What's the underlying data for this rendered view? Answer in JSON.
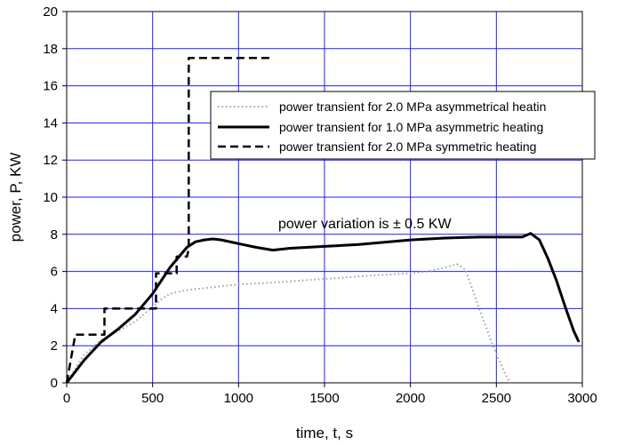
{
  "chart_data": {
    "type": "line",
    "xlabel": "time, t, s",
    "ylabel": "power, P, KW",
    "xlim": [
      0,
      3000
    ],
    "ylim": [
      0,
      20
    ],
    "xticks": [
      0,
      500,
      1000,
      1500,
      2000,
      2500,
      3000
    ],
    "yticks": [
      0,
      2,
      4,
      6,
      8,
      10,
      12,
      14,
      16,
      18,
      20
    ],
    "grid": true,
    "grid_color": "#1f1fff",
    "legend_placement": "upper-right",
    "annotation": "power variation is ± 0.5 KW",
    "series": [
      {
        "name": "power transient for 2.0 MPa asymmetrical heatin",
        "style": "dotted",
        "color": "#a0a0a0",
        "x": [
          0,
          100,
          200,
          300,
          400,
          500,
          550,
          600,
          700,
          800,
          1000,
          1200,
          1500,
          1800,
          2000,
          2100,
          2200,
          2270,
          2320,
          2400,
          2480,
          2550,
          2580
        ],
        "y": [
          0,
          1.5,
          2.3,
          2.8,
          3.3,
          4.1,
          4.5,
          4.8,
          5.0,
          5.1,
          5.3,
          5.4,
          5.6,
          5.8,
          5.9,
          6.0,
          6.2,
          6.4,
          6.1,
          4.0,
          2.0,
          0.5,
          0
        ]
      },
      {
        "name": "power transient for 1.0 MPa asymmetric heating",
        "style": "solid",
        "color": "#000000",
        "x": [
          0,
          100,
          200,
          300,
          400,
          500,
          600,
          700,
          750,
          800,
          850,
          900,
          1000,
          1100,
          1200,
          1300,
          1500,
          1700,
          2000,
          2200,
          2400,
          2500,
          2600,
          2650,
          2700,
          2750,
          2800,
          2850,
          2900,
          2950,
          2980
        ],
        "y": [
          0,
          1.2,
          2.2,
          2.9,
          3.7,
          4.8,
          6.2,
          7.3,
          7.6,
          7.7,
          7.75,
          7.7,
          7.5,
          7.3,
          7.15,
          7.25,
          7.35,
          7.45,
          7.7,
          7.8,
          7.85,
          7.85,
          7.85,
          7.85,
          8.05,
          7.7,
          6.7,
          5.5,
          4.1,
          2.8,
          2.2
        ]
      },
      {
        "name": "power transient for 2.0 MPa  symmetric heating",
        "style": "dashed",
        "color": "#000000",
        "x": [
          0,
          50,
          50,
          220,
          220,
          520,
          520,
          640,
          640,
          670,
          670,
          700,
          700,
          710,
          710,
          1200
        ],
        "y": [
          0,
          2.6,
          2.6,
          2.6,
          4.0,
          4.0,
          5.9,
          5.9,
          6.8,
          6.8,
          6.8,
          6.8,
          6.8,
          7.2,
          17.5,
          17.5
        ]
      }
    ]
  }
}
